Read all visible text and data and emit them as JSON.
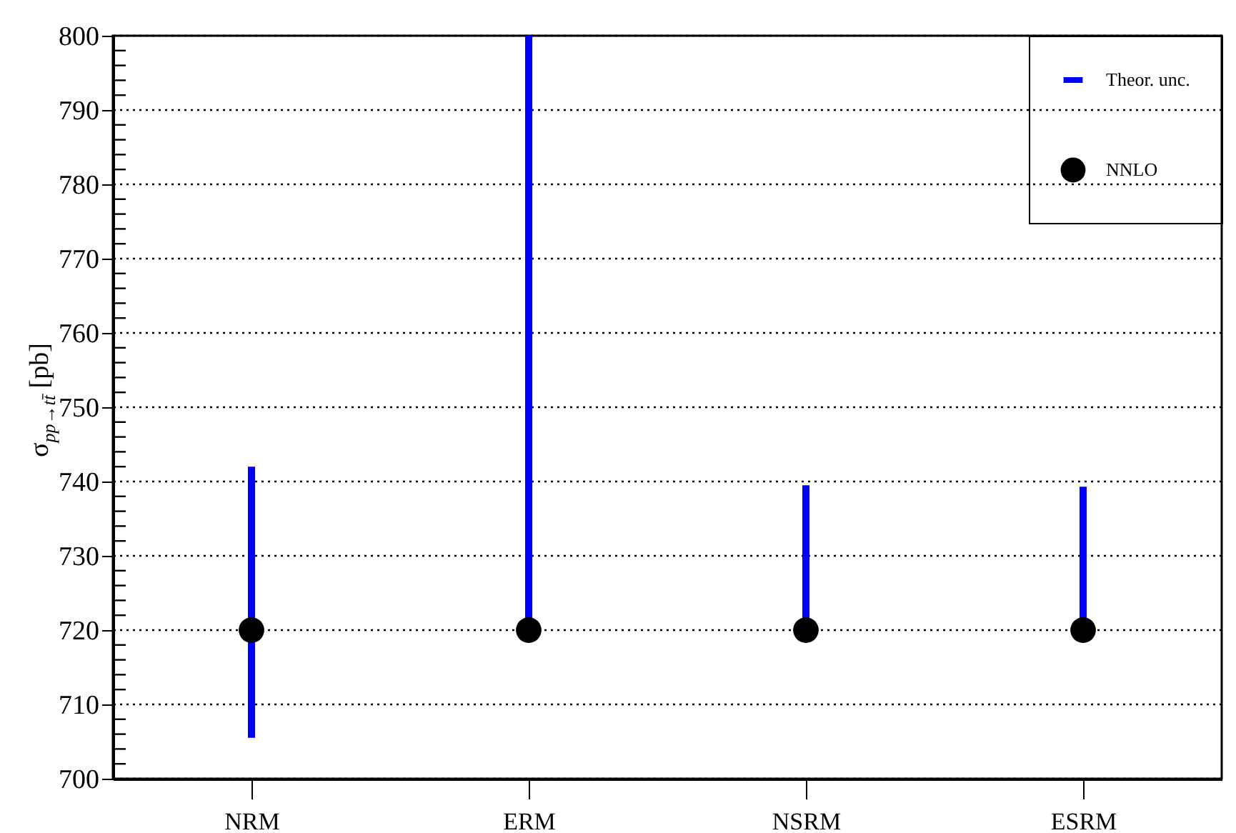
{
  "chart_data": {
    "type": "bar",
    "ylabel": "σ$_{pp→tt̄}$ [pb]",
    "categories": [
      "NRM",
      "ERM",
      "NSRM",
      "ESRM"
    ],
    "series": [
      {
        "name": "Theor. unc.",
        "color": "#0000ff",
        "base": [
          705.5,
          720,
          720,
          720
        ],
        "values": [
          36.5,
          80,
          19.5,
          19.3
        ]
      },
      {
        "name": "NNLO",
        "type": "scatter",
        "color": "#000000",
        "marker": "circle",
        "values": [
          720,
          720,
          720,
          720
        ]
      }
    ],
    "ylim": [
      700,
      800
    ],
    "yticks": [
      700,
      {
        "value": 702,
        "label": null
      },
      {
        "value": 704,
        "label": null
      },
      {
        "value": 706,
        "label": null
      },
      {
        "value": 708,
        "label": null
      },
      710,
      {
        "value": 712,
        "label": null
      },
      {
        "value": 714,
        "label": null
      },
      {
        "value": 716,
        "label": null
      },
      {
        "value": 718,
        "label": null
      },
      720,
      {
        "value": 722,
        "label": null
      },
      {
        "value": 724,
        "label": null
      },
      {
        "value": 726,
        "label": null
      },
      {
        "value": 728,
        "label": null
      },
      730,
      {
        "value": 732,
        "label": null
      },
      {
        "value": 734,
        "label": null
      },
      {
        "value": 736,
        "label": null
      },
      {
        "value": 738,
        "label": null
      },
      740,
      {
        "value": 742,
        "label": null
      },
      {
        "value": 744,
        "label": null
      },
      {
        "value": 746,
        "label": null
      },
      {
        "value": 748,
        "label": null
      },
      750,
      {
        "value": 752,
        "label": null
      },
      {
        "value": 754,
        "label": null
      },
      {
        "value": 756,
        "label": null
      },
      {
        "value": 758,
        "label": null
      },
      760,
      {
        "value": 762,
        "label": null
      },
      {
        "value": 764,
        "label": null
      },
      {
        "value": 766,
        "label": null
      },
      {
        "value": 768,
        "label": null
      },
      770,
      {
        "value": 772,
        "label": null
      },
      {
        "value": 774,
        "label": null
      },
      {
        "value": 776,
        "label": null
      },
      {
        "value": 778,
        "label": null
      },
      780,
      {
        "value": 782,
        "label": null
      },
      {
        "value": 784,
        "label": null
      },
      {
        "value": 786,
        "label": null
      },
      {
        "value": 788,
        "label": null
      },
      790,
      {
        "value": 792,
        "label": null
      },
      {
        "value": 794,
        "label": null
      },
      {
        "value": 796,
        "label": null
      },
      {
        "value": 798,
        "label": null
      },
      800
    ],
    "grid": "y",
    "legend": "top right"
  }
}
